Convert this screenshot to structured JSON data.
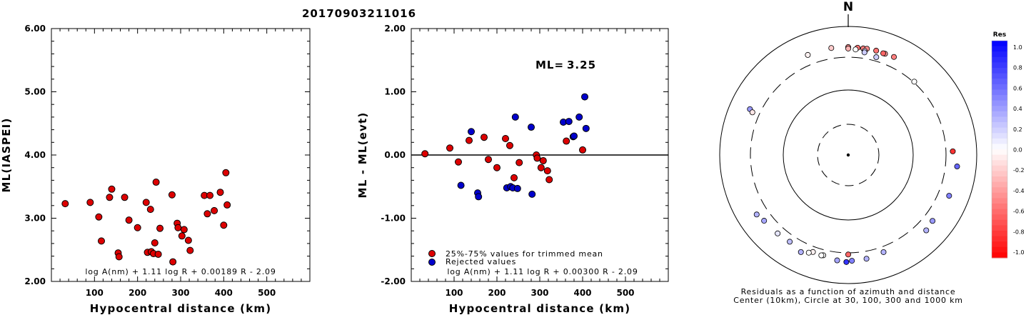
{
  "title": "20170903211016",
  "chart_data": [
    {
      "type": "scatter",
      "xlabel": "Hypocentral distance (km)",
      "ylabel": "ML(IASPEI)",
      "xlim": [
        0,
        600
      ],
      "ylim": [
        2.0,
        6.0
      ],
      "xticks": [
        "100",
        "200",
        "300",
        "400",
        "500"
      ],
      "yticks": [
        "2.00",
        "3.00",
        "4.00",
        "5.00",
        "6.00"
      ],
      "formula": "log A(nm) + 1.11 log R + 0.00189 R - 2.09",
      "grid": false,
      "series": [
        {
          "color": "#dd0000",
          "points": [
            [
              32,
              3.23
            ],
            [
              90,
              3.25
            ],
            [
              110,
              3.02
            ],
            [
              116,
              2.64
            ],
            [
              135,
              3.33
            ],
            [
              140,
              3.46
            ],
            [
              155,
              2.45
            ],
            [
              157,
              2.39
            ],
            [
              170,
              3.33
            ],
            [
              180,
              2.97
            ],
            [
              200,
              2.85
            ],
            [
              220,
              3.25
            ],
            [
              223,
              2.46
            ],
            [
              230,
              3.14
            ],
            [
              232,
              2.47
            ],
            [
              237,
              2.44
            ],
            [
              240,
              2.61
            ],
            [
              243,
              3.57
            ],
            [
              248,
              2.43
            ],
            [
              252,
              2.84
            ],
            [
              280,
              3.37
            ],
            [
              282,
              2.31
            ],
            [
              292,
              2.92
            ],
            [
              294,
              2.85
            ],
            [
              303,
              2.72
            ],
            [
              308,
              2.82
            ],
            [
              318,
              2.65
            ],
            [
              322,
              2.49
            ],
            [
              355,
              3.36
            ],
            [
              362,
              3.07
            ],
            [
              368,
              3.36
            ],
            [
              378,
              3.12
            ],
            [
              392,
              3.41
            ],
            [
              400,
              2.89
            ],
            [
              405,
              3.72
            ],
            [
              408,
              3.21
            ]
          ]
        }
      ]
    },
    {
      "type": "scatter",
      "xlabel": "Hypocentral distance (km)",
      "ylabel": "ML - ML(evt)",
      "xlim": [
        0,
        600
      ],
      "ylim": [
        -2.0,
        2.0
      ],
      "xticks": [
        "100",
        "200",
        "300",
        "400",
        "500"
      ],
      "yticks": [
        "-2.00",
        "-1.00",
        "0.00",
        "1.00",
        "2.00"
      ],
      "ml_label": "ML=",
      "ml_value": "3.25",
      "formula": "log A(nm) + 1.11 log R + 0.00300 R - 2.09",
      "zero_line": true,
      "series": [
        {
          "name": "25%-75% values for trimmed mean",
          "color": "#dd0000",
          "points": [
            [
              32,
              0.02
            ],
            [
              90,
              0.11
            ],
            [
              110,
              -0.11
            ],
            [
              135,
              0.23
            ],
            [
              170,
              0.28
            ],
            [
              180,
              -0.07
            ],
            [
              200,
              -0.2
            ],
            [
              220,
              0.26
            ],
            [
              230,
              0.15
            ],
            [
              240,
              -0.36
            ],
            [
              252,
              -0.12
            ],
            [
              292,
              0.0
            ],
            [
              294,
              -0.05
            ],
            [
              303,
              -0.2
            ],
            [
              308,
              -0.09
            ],
            [
              318,
              -0.25
            ],
            [
              322,
              -0.39
            ],
            [
              362,
              0.22
            ],
            [
              400,
              0.08
            ]
          ]
        },
        {
          "name": "Rejected values",
          "color": "#0000cc",
          "points": [
            [
              116,
              -0.48
            ],
            [
              140,
              0.37
            ],
            [
              155,
              -0.6
            ],
            [
              157,
              -0.66
            ],
            [
              223,
              -0.52
            ],
            [
              232,
              -0.5
            ],
            [
              237,
              -0.52
            ],
            [
              243,
              0.6
            ],
            [
              248,
              -0.53
            ],
            [
              280,
              0.44
            ],
            [
              282,
              -0.62
            ],
            [
              355,
              0.52
            ],
            [
              368,
              0.53
            ],
            [
              378,
              0.29
            ],
            [
              380,
              0.3
            ],
            [
              392,
              0.6
            ],
            [
              405,
              0.92
            ],
            [
              408,
              0.42
            ]
          ]
        }
      ]
    },
    {
      "type": "scatter",
      "subtype": "polar-residuals",
      "north_label": "N",
      "caption_line1": "Residuals as a function of azimuth and distance",
      "caption_line2": "Center (10km), Circle at 30, 100, 300 and 1000 km",
      "colorbar_title": "Res",
      "colorbar_ticks": [
        "1.0",
        "0.8",
        "0.6",
        "0.4",
        "0.2",
        "0.0",
        "-0.2",
        "-0.4",
        "-0.6",
        "-0.8",
        "-1.0"
      ],
      "rings_km": [
        30,
        100,
        300,
        1000
      ],
      "points_azimuth_deg_radius_km_residual": [
        [
          -9,
          452,
          -0.2
        ],
        [
          0,
          445,
          -0.45
        ],
        [
          5,
          441,
          -0.55
        ],
        [
          8,
          440,
          -0.5
        ],
        [
          10,
          445,
          -0.45
        ],
        [
          15,
          447,
          -0.55
        ],
        [
          20,
          442,
          -0.4
        ],
        [
          19,
          439,
          -0.6
        ],
        [
          25,
          450,
          -0.5
        ],
        [
          -22,
          445,
          -0.05
        ],
        [
          0,
          420,
          -0.3
        ],
        [
          4,
          410,
          0.0
        ],
        [
          9,
          402,
          0.1
        ],
        [
          9,
          380,
          0.2
        ],
        [
          16,
          350,
          0.2
        ],
        [
          42,
          310,
          0.0
        ],
        [
          88,
          392,
          -0.8
        ],
        [
          96,
          474,
          0.6
        ],
        [
          112,
          462,
          0.5
        ],
        [
          128,
          430,
          0.4
        ],
        [
          134,
          455,
          0.3
        ],
        [
          160,
          372,
          0.3
        ],
        [
          170,
          402,
          0.3
        ],
        [
          178,
          410,
          0.5
        ],
        [
          181,
          430,
          0.8
        ],
        [
          186,
          412,
          0.35
        ],
        [
          194,
          372,
          0.0
        ],
        [
          195,
          380,
          0.0
        ],
        [
          200,
          370,
          -0.05
        ],
        [
          202,
          402,
          0.0
        ],
        [
          206,
          446,
          0.3
        ],
        [
          214,
          391,
          0.25
        ],
        [
          222,
          405,
          0.1
        ],
        [
          232,
          426,
          0.35
        ],
        [
          237,
          468,
          0.3
        ],
        [
          295,
          455,
          0.4
        ],
        [
          294,
          396,
          -0.1
        ],
        [
          180,
          320,
          -0.6
        ]
      ]
    }
  ]
}
